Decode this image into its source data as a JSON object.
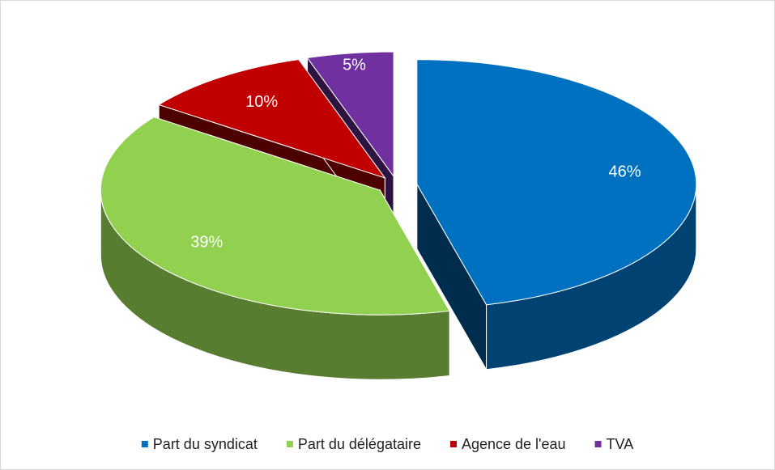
{
  "chart_data": {
    "type": "pie",
    "categories": [
      "Part du syndicat",
      "Part du délégataire",
      "Agence de l'eau",
      "TVA"
    ],
    "values": [
      46,
      39,
      10,
      5
    ],
    "value_labels": [
      "46%",
      "39%",
      "10%",
      "5%"
    ],
    "colors": [
      "#0070c0",
      "#92d050",
      "#c00000",
      "#7030a0"
    ],
    "legend": "bottom"
  }
}
